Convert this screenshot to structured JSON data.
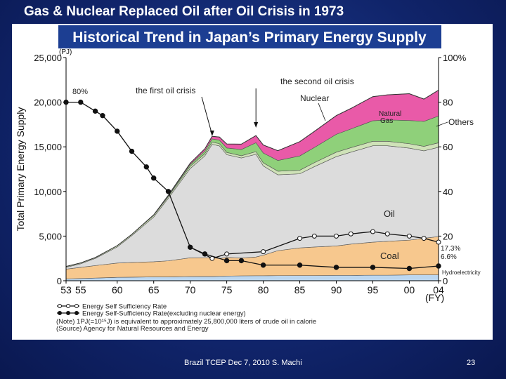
{
  "slide": {
    "title": "Gas & Nuclear Replaced Oil after Oil Crisis in 1973",
    "footer": "Brazil TCEP Dec 7, 2010 S. Machi",
    "page": "23"
  },
  "chart_data": {
    "type": "area",
    "title": "Historical Trend in Japan’s Primary Energy Supply",
    "ylabel": "Total Primary Energy Supply",
    "yunit": "(PJ)",
    "xunit": "(FY)",
    "ylim": [
      0,
      25000
    ],
    "xlim": [
      1953,
      2004
    ],
    "x_ticks": [
      "53",
      "55",
      "60",
      "65",
      "70",
      "75",
      "80",
      "85",
      "90",
      "95",
      "00",
      "04"
    ],
    "x_tick_years": [
      1953,
      1955,
      1960,
      1965,
      1970,
      1975,
      1980,
      1985,
      1990,
      1995,
      2000,
      2004
    ],
    "y_ticks": [
      0,
      5000,
      10000,
      15000,
      20000,
      25000
    ],
    "y_tick_labels": [
      "0",
      "5,000",
      "10,000",
      "15,000",
      "20,000",
      "25,000"
    ],
    "y2_ticks": [
      0,
      20,
      40,
      60,
      80,
      100
    ],
    "y2_tick_labels": [
      "0",
      "20",
      "40",
      "60",
      "80",
      "100%"
    ],
    "x": [
      1953,
      1955,
      1957,
      1960,
      1962,
      1965,
      1967,
      1970,
      1972,
      1973,
      1974,
      1975,
      1977,
      1979,
      1980,
      1982,
      1985,
      1987,
      1990,
      1992,
      1995,
      1997,
      2000,
      2002,
      2004
    ],
    "series": [
      {
        "name": "Hydroelectricity",
        "color": "#bcd7f0",
        "values": [
          200,
          250,
          300,
          380,
          400,
          430,
          430,
          470,
          480,
          480,
          500,
          520,
          550,
          560,
          560,
          570,
          580,
          580,
          600,
          600,
          620,
          620,
          650,
          650,
          650
        ]
      },
      {
        "name": "Coal",
        "color": "#f7c88e",
        "values": [
          1100,
          1250,
          1400,
          1600,
          1650,
          1700,
          1800,
          2100,
          2100,
          2100,
          2000,
          2100,
          2000,
          2100,
          2300,
          2800,
          3100,
          3200,
          3300,
          3500,
          3700,
          3800,
          3900,
          4100,
          4300
        ]
      },
      {
        "name": "Oil",
        "color": "#dcdcdc",
        "values": [
          200,
          400,
          800,
          1800,
          3000,
          5000,
          7000,
          10000,
          11400,
          12700,
          12600,
          11500,
          11200,
          11500,
          10000,
          8500,
          8300,
          9000,
          10000,
          10300,
          10800,
          10700,
          10300,
          9800,
          10000
        ]
      },
      {
        "name": "Others",
        "color": "#cfe2b8",
        "values": [
          100,
          100,
          100,
          150,
          150,
          200,
          200,
          250,
          250,
          250,
          250,
          250,
          250,
          300,
          350,
          400,
          400,
          450,
          500,
          500,
          500,
          500,
          500,
          500,
          500
        ]
      },
      {
        "name": "Natural Gas",
        "color": "#8fd07a",
        "values": [
          0,
          0,
          0,
          0,
          0,
          50,
          100,
          200,
          300,
          350,
          400,
          500,
          700,
          1000,
          1100,
          1200,
          1600,
          1700,
          2000,
          2100,
          2300,
          2400,
          2600,
          2800,
          3000
        ]
      },
      {
        "name": "Nuclear",
        "color": "#e95aa8",
        "values": [
          0,
          0,
          0,
          0,
          0,
          0,
          50,
          150,
          250,
          300,
          350,
          450,
          600,
          800,
          900,
          1100,
          1600,
          1800,
          2100,
          2300,
          2700,
          2800,
          3000,
          2500,
          2900
        ]
      }
    ],
    "line_series": [
      {
        "name": "Energy Self Sufficiency Rate",
        "marker": "open",
        "x": [
          1970,
          1973,
          1975,
          1980,
          1985,
          1987,
          1990,
          1992,
          1995,
          1997,
          2000,
          2002,
          2004
        ],
        "values": [
          15,
          10,
          12,
          13,
          19,
          20,
          20,
          21,
          22,
          21,
          20,
          19,
          17.3
        ]
      },
      {
        "name": "Energy Self-Sufficiency Rate(excluding nuclear energy)",
        "marker": "filled",
        "x": [
          1953,
          1955,
          1957,
          1958,
          1960,
          1962,
          1964,
          1965,
          1967,
          1970,
          1972,
          1975,
          1977,
          1980,
          1985,
          1990,
          1995,
          2000,
          2004
        ],
        "values": [
          80,
          80,
          76,
          74,
          67,
          58,
          51,
          46,
          40,
          15,
          12,
          9,
          9,
          7,
          7,
          6,
          6,
          5.5,
          6.6
        ]
      }
    ],
    "annotations": [
      {
        "text": "(PJ)"
      },
      {
        "text": "80%"
      },
      {
        "text": "the first oil crisis",
        "year": 1973
      },
      {
        "text": "the second oil crisis",
        "year": 1979
      },
      {
        "text": "Nuclear"
      },
      {
        "text": "Natural"
      },
      {
        "text": "Gas"
      },
      {
        "text": "Others"
      },
      {
        "text": "Oil"
      },
      {
        "text": "Coal"
      },
      {
        "text": "17.3%"
      },
      {
        "text": "6.6%"
      },
      {
        "text": "Hydroelectricity"
      }
    ],
    "legend": [
      "Energy Self Sufficiency Rate",
      "Energy Self-Sufficiency Rate(excluding nuclear energy)"
    ],
    "notes": [
      "(Note) 1PJ(=10¹⁵J) is equivalent to approximately 25,800,000 liters of crude oil in calorie",
      "(Source) Agency for Natural Resources and Energy"
    ]
  }
}
